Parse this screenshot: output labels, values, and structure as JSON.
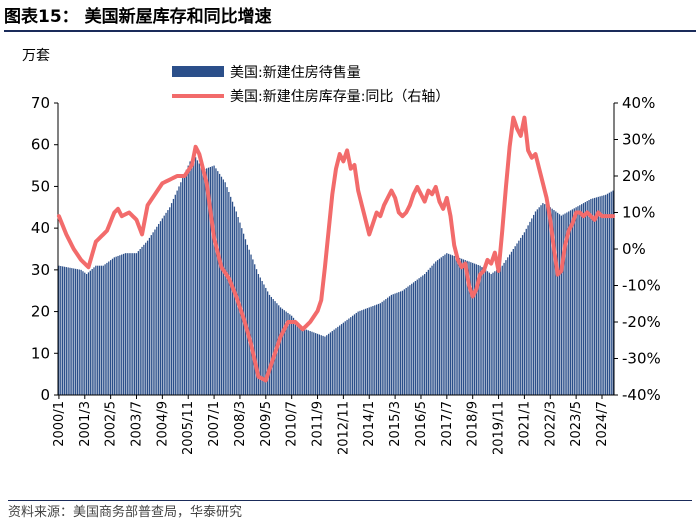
{
  "header": {
    "title": "图表15：  美国新屋库存和同比增速"
  },
  "source": "资料来源：美国商务部普查局，华泰研究",
  "chart_data": {
    "type": "bar+line",
    "title": "美国新屋库存和同比增速",
    "unit_left": "万套",
    "x_tick_labels": [
      "2000/1",
      "2001/3",
      "2002/5",
      "2003/7",
      "2004/9",
      "2005/11",
      "2007/1",
      "2008/3",
      "2009/5",
      "2010/7",
      "2011/9",
      "2012/11",
      "2014/1",
      "2015/3",
      "2016/5",
      "2017/7",
      "2018/9",
      "2019/11",
      "2021/1",
      "2022/3",
      "2023/5",
      "2024/7"
    ],
    "y_left": {
      "min": 0,
      "max": 70,
      "ticks": [
        0,
        10,
        20,
        30,
        40,
        50,
        60,
        70
      ]
    },
    "y_right": {
      "min": -40,
      "max": 40,
      "ticks": [
        -40,
        -30,
        -20,
        -10,
        0,
        10,
        20,
        30,
        40
      ],
      "tick_labels": [
        "-40%",
        "-30%",
        "-20%",
        "-10%",
        "0%",
        "10%",
        "20%",
        "30%",
        "40%"
      ]
    },
    "x_start": "2000/1",
    "x_end": "2025/1",
    "months": 301,
    "series": [
      {
        "name": "美国:新建住房待售量",
        "type": "bar",
        "axis": "left",
        "color": "#2b4f8a",
        "anchors": [
          [
            0,
            31
          ],
          [
            12,
            30
          ],
          [
            15,
            29
          ],
          [
            20,
            31
          ],
          [
            24,
            31
          ],
          [
            30,
            33
          ],
          [
            36,
            34
          ],
          [
            42,
            34
          ],
          [
            48,
            37
          ],
          [
            54,
            41
          ],
          [
            60,
            45
          ],
          [
            66,
            51
          ],
          [
            71,
            56
          ],
          [
            74,
            57
          ],
          [
            78,
            54
          ],
          [
            84,
            55
          ],
          [
            90,
            51
          ],
          [
            96,
            44
          ],
          [
            102,
            36
          ],
          [
            108,
            29
          ],
          [
            114,
            24
          ],
          [
            120,
            21
          ],
          [
            126,
            19
          ],
          [
            132,
            16
          ],
          [
            138,
            15
          ],
          [
            144,
            14
          ],
          [
            150,
            16
          ],
          [
            156,
            18
          ],
          [
            162,
            20
          ],
          [
            168,
            21
          ],
          [
            174,
            22
          ],
          [
            180,
            24
          ],
          [
            186,
            25
          ],
          [
            192,
            27
          ],
          [
            198,
            29
          ],
          [
            204,
            32
          ],
          [
            210,
            34
          ],
          [
            216,
            33
          ],
          [
            222,
            32
          ],
          [
            228,
            31
          ],
          [
            234,
            29
          ],
          [
            240,
            31
          ],
          [
            246,
            35
          ],
          [
            252,
            39
          ],
          [
            258,
            44
          ],
          [
            262,
            46
          ],
          [
            266,
            45
          ],
          [
            272,
            43
          ],
          [
            280,
            45
          ],
          [
            288,
            47
          ],
          [
            296,
            48
          ],
          [
            300,
            49
          ]
        ]
      },
      {
        "name": "美国:新建住房库存量:同比（右轴）",
        "type": "line",
        "axis": "right",
        "color": "#f26b6b",
        "anchors": [
          [
            0,
            9
          ],
          [
            4,
            4
          ],
          [
            8,
            0
          ],
          [
            12,
            -3
          ],
          [
            16,
            -5
          ],
          [
            20,
            2
          ],
          [
            26,
            5
          ],
          [
            30,
            10
          ],
          [
            32,
            11
          ],
          [
            34,
            9
          ],
          [
            38,
            10
          ],
          [
            42,
            8
          ],
          [
            45,
            4
          ],
          [
            48,
            12
          ],
          [
            52,
            15
          ],
          [
            56,
            18
          ],
          [
            60,
            19
          ],
          [
            64,
            20
          ],
          [
            68,
            20
          ],
          [
            72,
            23
          ],
          [
            74,
            28
          ],
          [
            76,
            26
          ],
          [
            80,
            18
          ],
          [
            84,
            3
          ],
          [
            88,
            -5
          ],
          [
            92,
            -8
          ],
          [
            96,
            -13
          ],
          [
            100,
            -19
          ],
          [
            104,
            -26
          ],
          [
            108,
            -35
          ],
          [
            112,
            -36
          ],
          [
            116,
            -30
          ],
          [
            120,
            -24
          ],
          [
            124,
            -20
          ],
          [
            128,
            -20
          ],
          [
            132,
            -22
          ],
          [
            136,
            -20
          ],
          [
            140,
            -17
          ],
          [
            142,
            -14
          ],
          [
            144,
            -5
          ],
          [
            146,
            5
          ],
          [
            148,
            15
          ],
          [
            150,
            22
          ],
          [
            152,
            26
          ],
          [
            154,
            24
          ],
          [
            156,
            27
          ],
          [
            158,
            22
          ],
          [
            160,
            23
          ],
          [
            162,
            16
          ],
          [
            164,
            12
          ],
          [
            166,
            8
          ],
          [
            168,
            4
          ],
          [
            170,
            7
          ],
          [
            172,
            10
          ],
          [
            174,
            9
          ],
          [
            176,
            12
          ],
          [
            178,
            14
          ],
          [
            180,
            16
          ],
          [
            182,
            14
          ],
          [
            184,
            10
          ],
          [
            186,
            9
          ],
          [
            188,
            10
          ],
          [
            190,
            12
          ],
          [
            192,
            15
          ],
          [
            194,
            17
          ],
          [
            196,
            15
          ],
          [
            198,
            13
          ],
          [
            200,
            16
          ],
          [
            202,
            15
          ],
          [
            204,
            17
          ],
          [
            206,
            13
          ],
          [
            208,
            11
          ],
          [
            210,
            14
          ],
          [
            212,
            9
          ],
          [
            214,
            1
          ],
          [
            216,
            -3
          ],
          [
            218,
            -5
          ],
          [
            220,
            -4
          ],
          [
            222,
            -10
          ],
          [
            224,
            -13
          ],
          [
            226,
            -11
          ],
          [
            228,
            -7
          ],
          [
            230,
            -6
          ],
          [
            232,
            -3
          ],
          [
            234,
            -4
          ],
          [
            236,
            -1
          ],
          [
            238,
            -6
          ],
          [
            240,
            5
          ],
          [
            242,
            17
          ],
          [
            244,
            28
          ],
          [
            246,
            36
          ],
          [
            248,
            33
          ],
          [
            250,
            31
          ],
          [
            252,
            36
          ],
          [
            254,
            27
          ],
          [
            256,
            25
          ],
          [
            258,
            26
          ],
          [
            260,
            22
          ],
          [
            262,
            18
          ],
          [
            264,
            14
          ],
          [
            266,
            8
          ],
          [
            268,
            0
          ],
          [
            270,
            -7
          ],
          [
            272,
            -6
          ],
          [
            274,
            1
          ],
          [
            276,
            5
          ],
          [
            278,
            7
          ],
          [
            280,
            10
          ],
          [
            282,
            10
          ],
          [
            284,
            9
          ],
          [
            286,
            10
          ],
          [
            288,
            9
          ],
          [
            290,
            8
          ],
          [
            292,
            10
          ],
          [
            294,
            9
          ],
          [
            296,
            9
          ],
          [
            298,
            9
          ],
          [
            300,
            9
          ]
        ]
      }
    ],
    "legend": [
      {
        "label": "美国:新建住房待售量",
        "kind": "bar",
        "color": "#2b4f8a"
      },
      {
        "label": "美国:新建住房库存量:同比（右轴）",
        "kind": "line",
        "color": "#f26b6b"
      }
    ]
  }
}
